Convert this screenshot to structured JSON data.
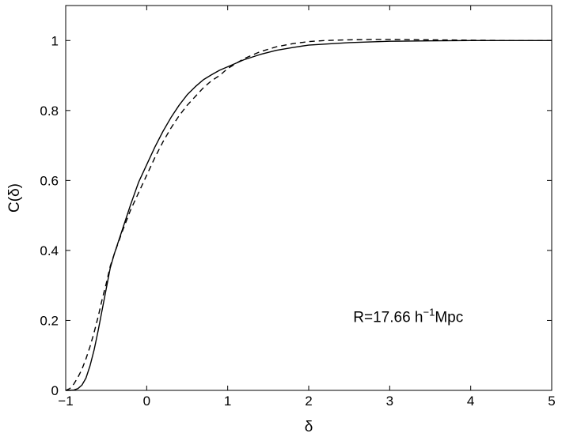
{
  "chart_data": {
    "type": "line",
    "title": "",
    "xlabel": "δ",
    "ylabel": "C(δ)",
    "xlim": [
      -1,
      5
    ],
    "ylim": [
      0,
      1.1
    ],
    "xticks": [
      -1,
      0,
      1,
      2,
      3,
      4,
      5
    ],
    "yticks": [
      0,
      0.2,
      0.4,
      0.6,
      0.8,
      1
    ],
    "xtick_labels": [
      "−1",
      "0",
      "1",
      "2",
      "3",
      "4",
      "5"
    ],
    "ytick_labels": [
      "0",
      "0.2",
      "0.4",
      "0.6",
      "0.8",
      "1"
    ],
    "grid": false,
    "annotation": {
      "prefix": "R=17.66 h",
      "superscript": "−1",
      "suffix": "Mpc",
      "x": 2.55,
      "y": 0.195
    },
    "series": [
      {
        "style": "solid",
        "color": "#000000",
        "x": [
          -1,
          -0.95,
          -0.9,
          -0.85,
          -0.8,
          -0.75,
          -0.7,
          -0.65,
          -0.6,
          -0.55,
          -0.5,
          -0.45,
          -0.4,
          -0.3,
          -0.2,
          -0.1,
          0,
          0.1,
          0.2,
          0.3,
          0.4,
          0.5,
          0.6,
          0.7,
          0.8,
          0.9,
          1.0,
          1.2,
          1.4,
          1.6,
          1.8,
          2.0,
          2.5,
          3.0,
          3.5,
          4.0,
          4.5,
          5.0
        ],
        "y": [
          0,
          0,
          0.001,
          0.005,
          0.015,
          0.035,
          0.07,
          0.115,
          0.17,
          0.23,
          0.29,
          0.35,
          0.39,
          0.46,
          0.53,
          0.595,
          0.645,
          0.695,
          0.74,
          0.78,
          0.815,
          0.845,
          0.868,
          0.888,
          0.902,
          0.915,
          0.925,
          0.945,
          0.96,
          0.972,
          0.98,
          0.987,
          0.994,
          0.998,
          0.999,
          1.0,
          1.0,
          1.0
        ]
      },
      {
        "style": "dashed",
        "color": "#000000",
        "x": [
          -1,
          -0.95,
          -0.9,
          -0.85,
          -0.8,
          -0.75,
          -0.7,
          -0.65,
          -0.6,
          -0.55,
          -0.5,
          -0.45,
          -0.4,
          -0.3,
          -0.2,
          -0.1,
          0,
          0.1,
          0.2,
          0.3,
          0.4,
          0.5,
          0.6,
          0.7,
          0.8,
          0.9,
          1.0,
          1.2,
          1.4,
          1.6,
          1.8,
          2.0,
          2.2,
          2.5,
          2.8,
          3.0,
          3.5,
          4.0,
          4.5,
          5.0
        ],
        "y": [
          0,
          0.005,
          0.018,
          0.037,
          0.06,
          0.09,
          0.125,
          0.165,
          0.21,
          0.26,
          0.305,
          0.355,
          0.39,
          0.455,
          0.515,
          0.565,
          0.615,
          0.665,
          0.71,
          0.75,
          0.785,
          0.815,
          0.84,
          0.865,
          0.885,
          0.9,
          0.92,
          0.948,
          0.968,
          0.982,
          0.991,
          0.997,
          1.0,
          1.002,
          1.003,
          1.003,
          1.002,
          1.001,
          1.0,
          1.0
        ]
      }
    ]
  }
}
